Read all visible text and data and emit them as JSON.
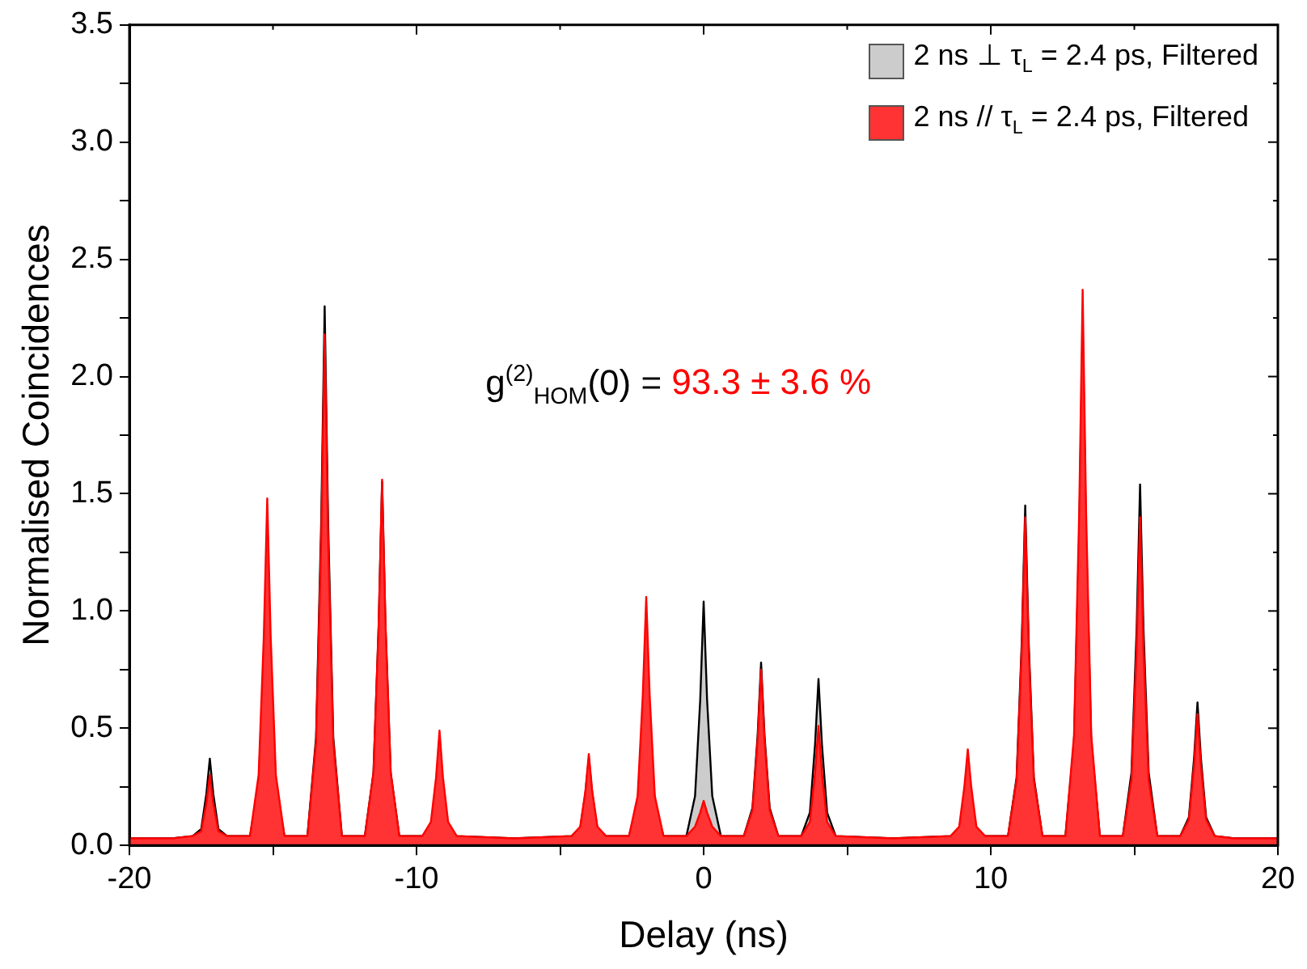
{
  "chart_data": {
    "type": "area",
    "xlabel": "Delay (ns)",
    "ylabel": "Normalised Coincidences",
    "annotations": [
      "g$^{(2)}$$_{HOM}$(0) = ",
      "93.3 ± 3.6 %"
    ],
    "x": [
      -20,
      -18.5,
      -17.8,
      -17.5,
      -17.32,
      -17.2,
      -17.08,
      -16.9,
      -16.6,
      -15.8,
      -15.5,
      -15.32,
      -15.2,
      -15.08,
      -14.9,
      -14.6,
      -13.8,
      -13.5,
      -13.32,
      -13.2,
      -13.08,
      -12.9,
      -12.6,
      -11.8,
      -11.5,
      -11.32,
      -11.2,
      -11.08,
      -10.9,
      -10.6,
      -9.8,
      -9.5,
      -9.32,
      -9.2,
      -9.08,
      -8.9,
      -8.6,
      -6.6,
      -4.6,
      -4.3,
      -4.12,
      -4,
      -3.88,
      -3.7,
      -3.4,
      -2.6,
      -2.3,
      -2.12,
      -2,
      -1.88,
      -1.7,
      -1.4,
      -0.6,
      -0.3,
      -0.12,
      0,
      0.12,
      0.3,
      0.6,
      1.4,
      1.7,
      1.88,
      2,
      2.12,
      2.3,
      2.6,
      3.4,
      3.7,
      3.88,
      4,
      4.12,
      4.3,
      4.6,
      6.6,
      8.6,
      8.9,
      9.08,
      9.2,
      9.32,
      9.5,
      9.8,
      10.6,
      10.9,
      11.08,
      11.2,
      11.32,
      11.5,
      11.8,
      12.6,
      12.9,
      13.08,
      13.2,
      13.32,
      13.5,
      13.8,
      14.6,
      14.9,
      15.08,
      15.2,
      15.32,
      15.5,
      15.8,
      16.6,
      16.9,
      17.08,
      17.2,
      17.32,
      17.5,
      17.8,
      18.5,
      20
    ],
    "series": [
      {
        "name": "2 ns ⊥ τ$_{L}$ = 2.4 ps, Filtered",
        "color": "#000000",
        "values": [
          0.03,
          0.03,
          0.04,
          0.07,
          0.22,
          0.37,
          0.22,
          0.07,
          0.04,
          0.04,
          0.26,
          0.78,
          1.3,
          0.78,
          0.26,
          0.04,
          0.04,
          0.46,
          1.38,
          2.3,
          1.38,
          0.46,
          0.04,
          0.04,
          0.31,
          0.93,
          1.55,
          0.93,
          0.31,
          0.04,
          0.04,
          0.07,
          0.22,
          0.37,
          0.22,
          0.07,
          0.04,
          0.03,
          0.04,
          0.07,
          0.22,
          0.37,
          0.22,
          0.07,
          0.04,
          0.04,
          0.18,
          0.54,
          0.9,
          0.54,
          0.18,
          0.04,
          0.04,
          0.21,
          0.62,
          1.04,
          0.62,
          0.21,
          0.04,
          0.04,
          0.16,
          0.47,
          0.78,
          0.47,
          0.16,
          0.04,
          0.04,
          0.14,
          0.43,
          0.71,
          0.43,
          0.14,
          0.04,
          0.03,
          0.04,
          0.06,
          0.18,
          0.3,
          0.18,
          0.06,
          0.04,
          0.04,
          0.29,
          0.87,
          1.45,
          0.87,
          0.29,
          0.04,
          0.04,
          0.44,
          1.32,
          2.2,
          1.32,
          0.44,
          0.04,
          0.04,
          0.31,
          0.92,
          1.54,
          0.92,
          0.31,
          0.04,
          0.04,
          0.12,
          0.37,
          0.61,
          0.37,
          0.12,
          0.04,
          0.03,
          0.03
        ]
      },
      {
        "name": "2 ns // τ$_{L}$ = 2.4 ps, Filtered",
        "color": "#ff0000",
        "values": [
          0.03,
          0.03,
          0.04,
          0.06,
          0.18,
          0.3,
          0.18,
          0.06,
          0.04,
          0.04,
          0.3,
          0.89,
          1.48,
          0.89,
          0.3,
          0.04,
          0.04,
          0.44,
          1.31,
          2.18,
          1.31,
          0.44,
          0.04,
          0.04,
          0.31,
          0.94,
          1.56,
          0.94,
          0.31,
          0.04,
          0.04,
          0.1,
          0.29,
          0.49,
          0.29,
          0.1,
          0.04,
          0.03,
          0.04,
          0.08,
          0.23,
          0.39,
          0.23,
          0.08,
          0.04,
          0.04,
          0.21,
          0.64,
          1.06,
          0.64,
          0.21,
          0.04,
          0.04,
          0.08,
          0.14,
          0.19,
          0.14,
          0.08,
          0.04,
          0.04,
          0.15,
          0.45,
          0.75,
          0.45,
          0.15,
          0.04,
          0.04,
          0.1,
          0.31,
          0.51,
          0.31,
          0.1,
          0.04,
          0.03,
          0.04,
          0.08,
          0.25,
          0.41,
          0.25,
          0.08,
          0.04,
          0.04,
          0.28,
          0.84,
          1.4,
          0.84,
          0.28,
          0.04,
          0.04,
          0.47,
          1.42,
          2.37,
          1.42,
          0.47,
          0.04,
          0.04,
          0.28,
          0.84,
          1.4,
          0.84,
          0.28,
          0.04,
          0.04,
          0.11,
          0.34,
          0.56,
          0.34,
          0.11,
          0.04,
          0.03,
          0.03
        ]
      }
    ],
    "xlim": [
      -20,
      20
    ],
    "xticks": [
      -20,
      {
        "value": -15,
        "label": null
      },
      -10,
      {
        "value": -5,
        "label": null
      },
      0,
      {
        "value": 5,
        "label": null
      },
      10,
      {
        "value": 15,
        "label": null
      },
      20
    ],
    "ylim": [
      0,
      3.5
    ],
    "yticks": [
      {
        "value": 0,
        "label": "0.0"
      },
      {
        "value": 0.25,
        "label": null
      },
      {
        "value": 0.5,
        "label": "0.5"
      },
      {
        "value": 0.75,
        "label": null
      },
      {
        "value": 1,
        "label": "1.0"
      },
      {
        "value": 1.25,
        "label": null
      },
      {
        "value": 1.5,
        "label": "1.5"
      },
      {
        "value": 1.75,
        "label": null
      },
      {
        "value": 2,
        "label": "2.0"
      },
      {
        "value": 2.25,
        "label": null
      },
      {
        "value": 2.5,
        "label": "2.5"
      },
      {
        "value": 2.75,
        "label": null
      },
      {
        "value": 3,
        "label": "3.0"
      },
      {
        "value": 3.25,
        "label": null
      },
      {
        "value": 3.5,
        "label": "3.5"
      }
    ],
    "legend": "top right",
    "grid": false,
    "marker": "none",
    "line_style": "solid"
  }
}
